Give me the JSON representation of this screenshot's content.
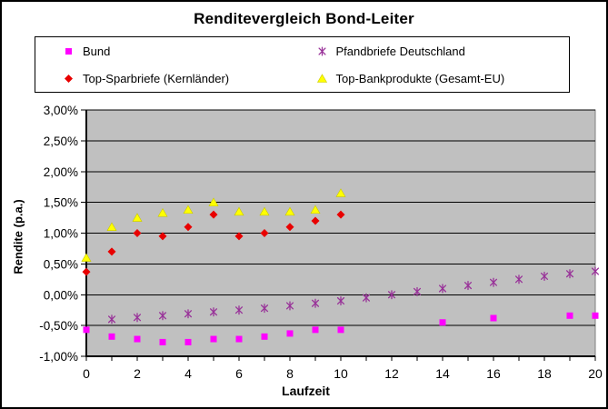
{
  "title": "Renditevergleich Bond-Leiter",
  "axes": {
    "xlabel": "Laufzeit",
    "ylabel": "Rendite (p.a.)"
  },
  "legend": {
    "items": [
      {
        "label": "Bund",
        "marker": "square-icon",
        "color": "#FF00FF"
      },
      {
        "label": "Pfandbriefe Deutschland",
        "marker": "xstar-icon",
        "color": "#993399"
      },
      {
        "label": "Top-Sparbriefe (Kernländer)",
        "marker": "diamond-icon",
        "color": "#E80000"
      },
      {
        "label": "Top-Bankprodukte (Gesamt-EU)",
        "marker": "triangle-icon",
        "color": "#FFFF00"
      }
    ]
  },
  "chart_data": {
    "type": "scatter",
    "title": "Renditevergleich Bond-Leiter",
    "xlabel": "Laufzeit",
    "ylabel": "Rendite (p.a.)",
    "xlim": [
      0,
      20
    ],
    "ylim": [
      -1.0,
      3.0
    ],
    "x_tick_step": 1,
    "x_label_step": 2,
    "y_tick_step": 0.5,
    "y_tick_format": "german-percent-2dp",
    "grid": "horizontal-major",
    "legend_position": "top",
    "plot_bg": "#C0C0C0",
    "grid_color": "#000000",
    "series": [
      {
        "name": "Bund",
        "marker": "square",
        "color": "#FF00FF",
        "points": [
          [
            0,
            -0.57
          ],
          [
            1,
            -0.68
          ],
          [
            2,
            -0.72
          ],
          [
            3,
            -0.77
          ],
          [
            4,
            -0.77
          ],
          [
            5,
            -0.72
          ],
          [
            6,
            -0.72
          ],
          [
            7,
            -0.68
          ],
          [
            8,
            -0.63
          ],
          [
            9,
            -0.57
          ],
          [
            10,
            -0.57
          ],
          [
            14,
            -0.45
          ],
          [
            16,
            -0.38
          ],
          [
            19,
            -0.34
          ],
          [
            20,
            -0.34
          ]
        ]
      },
      {
        "name": "Pfandbriefe Deutschland",
        "marker": "xstar",
        "color": "#993399",
        "points": [
          [
            1,
            -0.4
          ],
          [
            2,
            -0.37
          ],
          [
            3,
            -0.34
          ],
          [
            4,
            -0.31
          ],
          [
            5,
            -0.28
          ],
          [
            6,
            -0.25
          ],
          [
            7,
            -0.22
          ],
          [
            8,
            -0.18
          ],
          [
            9,
            -0.14
          ],
          [
            10,
            -0.1
          ],
          [
            11,
            -0.05
          ],
          [
            12,
            0.0
          ],
          [
            13,
            0.05
          ],
          [
            14,
            0.1
          ],
          [
            15,
            0.15
          ],
          [
            16,
            0.2
          ],
          [
            17,
            0.25
          ],
          [
            18,
            0.3
          ],
          [
            19,
            0.34
          ],
          [
            20,
            0.38
          ]
        ]
      },
      {
        "name": "Top-Sparbriefe (Kernländer)",
        "marker": "diamond",
        "color": "#E80000",
        "points": [
          [
            0,
            0.37
          ],
          [
            1,
            0.7
          ],
          [
            2,
            1.0
          ],
          [
            3,
            0.95
          ],
          [
            4,
            1.1
          ],
          [
            5,
            1.3
          ],
          [
            6,
            0.95
          ],
          [
            7,
            1.0
          ],
          [
            8,
            1.1
          ],
          [
            9,
            1.2
          ],
          [
            10,
            1.3
          ]
        ]
      },
      {
        "name": "Top-Bankprodukte (Gesamt-EU)",
        "marker": "triangle",
        "color": "#FFFF00",
        "points": [
          [
            0,
            0.6
          ],
          [
            1,
            1.1
          ],
          [
            2,
            1.25
          ],
          [
            3,
            1.33
          ],
          [
            4,
            1.38
          ],
          [
            5,
            1.5
          ],
          [
            6,
            1.35
          ],
          [
            7,
            1.35
          ],
          [
            8,
            1.35
          ],
          [
            9,
            1.38
          ],
          [
            10,
            1.65
          ]
        ]
      }
    ]
  }
}
